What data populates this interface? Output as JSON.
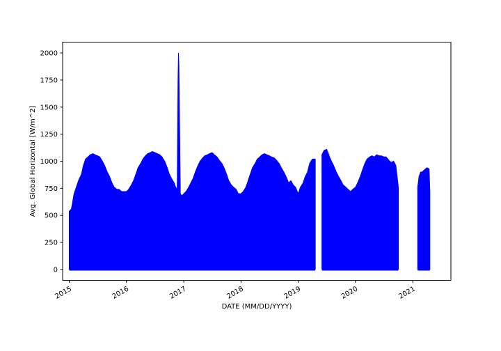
{
  "chart_data": {
    "type": "area",
    "title": "",
    "xlabel": "DATE (MM/DD/YYYY)",
    "ylabel": "Avg. Global Horizontal [W/m^2]",
    "xlim": [
      "2014-11-20",
      "2021-09-01"
    ],
    "ylim": [
      -100,
      2100
    ],
    "x_ticks": [
      "2015",
      "2016",
      "2017",
      "2018",
      "2019",
      "2020",
      "2021"
    ],
    "y_ticks": [
      0,
      250,
      500,
      750,
      1000,
      1250,
      1500,
      1750,
      2000
    ],
    "grid": false,
    "legend": "none",
    "series_color": "#0000ff",
    "series": [
      {
        "min": 0,
        "envelope_daily_max": {
          "dates": [
            "2015-01-01",
            "2015-01-03",
            "2015-01-15",
            "2015-02-01",
            "2015-02-15",
            "2015-03-01",
            "2015-03-20",
            "2015-04-01",
            "2015-04-15",
            "2015-05-01",
            "2015-05-15",
            "2015-06-01",
            "2015-06-15",
            "2015-07-01",
            "2015-07-15",
            "2015-08-01",
            "2015-08-15",
            "2015-09-01",
            "2015-09-15",
            "2015-10-01",
            "2015-10-15",
            "2015-11-01",
            "2015-11-15",
            "2015-12-01",
            "2015-12-15",
            "2016-01-01",
            "2016-01-15",
            "2016-02-01",
            "2016-02-15",
            "2016-03-01",
            "2016-03-15",
            "2016-04-01",
            "2016-04-15",
            "2016-05-01",
            "2016-05-15",
            "2016-06-01",
            "2016-06-15",
            "2016-07-01",
            "2016-07-15",
            "2016-08-01",
            "2016-08-15",
            "2016-09-01",
            "2016-09-15",
            "2016-10-01",
            "2016-10-15",
            "2016-11-01",
            "2016-11-10",
            "2016-11-20",
            "2016-11-25",
            "2016-11-28",
            "2016-12-01",
            "2016-12-10",
            "2016-12-20",
            "2017-01-01",
            "2017-01-15",
            "2017-02-01",
            "2017-02-15",
            "2017-03-01",
            "2017-03-15",
            "2017-04-01",
            "2017-04-15",
            "2017-05-01",
            "2017-05-15",
            "2017-06-01",
            "2017-06-15",
            "2017-07-01",
            "2017-07-15",
            "2017-08-01",
            "2017-08-15",
            "2017-09-01",
            "2017-09-15",
            "2017-10-01",
            "2017-10-15",
            "2017-11-01",
            "2017-11-15",
            "2017-12-01",
            "2017-12-15",
            "2018-01-01",
            "2018-01-15",
            "2018-02-01",
            "2018-02-15",
            "2018-03-01",
            "2018-03-15",
            "2018-04-01",
            "2018-04-15",
            "2018-05-01",
            "2018-05-15",
            "2018-06-01",
            "2018-06-15",
            "2018-07-01",
            "2018-07-15",
            "2018-08-01",
            "2018-08-15",
            "2018-09-01",
            "2018-09-15",
            "2018-10-01",
            "2018-10-15",
            "2018-11-01",
            "2018-11-15",
            "2018-12-01",
            "2018-12-15",
            "2019-01-01",
            "2019-01-15",
            "2019-02-01",
            "2019-02-15",
            "2019-03-01",
            "2019-03-15",
            "2019-04-01",
            "2019-04-15",
            "2019-04-20",
            "2019-06-01",
            "2019-06-15",
            "2019-07-01",
            "2019-07-10",
            "2019-07-20",
            "2019-08-01",
            "2019-08-15",
            "2019-09-01",
            "2019-09-15",
            "2019-10-01",
            "2019-10-15",
            "2019-11-01",
            "2019-11-15",
            "2019-12-01",
            "2019-12-15",
            "2020-01-01",
            "2020-01-15",
            "2020-02-01",
            "2020-02-15",
            "2020-03-01",
            "2020-03-15",
            "2020-04-01",
            "2020-04-15",
            "2020-05-01",
            "2020-05-15",
            "2020-06-01",
            "2020-06-15",
            "2020-07-01",
            "2020-07-15",
            "2020-08-01",
            "2020-08-15",
            "2020-09-01",
            "2020-09-15",
            "2020-10-01",
            "2021-02-01",
            "2021-02-10",
            "2021-02-20",
            "2021-03-01",
            "2021-03-15",
            "2021-04-01",
            "2021-04-15",
            "2021-04-20"
          ],
          "values": [
            540,
            540,
            560,
            700,
            760,
            820,
            880,
            960,
            1020,
            1040,
            1060,
            1070,
            1060,
            1050,
            1040,
            1000,
            960,
            900,
            860,
            800,
            760,
            740,
            740,
            720,
            720,
            720,
            740,
            780,
            820,
            880,
            940,
            980,
            1020,
            1050,
            1070,
            1080,
            1090,
            1080,
            1070,
            1060,
            1040,
            1000,
            950,
            880,
            840,
            800,
            760,
            740,
            1750,
            2000,
            1880,
            700,
            680,
            700,
            720,
            760,
            800,
            840,
            900,
            960,
            1000,
            1030,
            1050,
            1060,
            1070,
            1080,
            1060,
            1040,
            1010,
            980,
            940,
            880,
            820,
            780,
            760,
            740,
            700,
            700,
            720,
            760,
            820,
            880,
            940,
            980,
            1020,
            1040,
            1060,
            1070,
            1060,
            1050,
            1040,
            1030,
            1010,
            980,
            940,
            900,
            860,
            800,
            820,
            780,
            760,
            700,
            760,
            800,
            860,
            900,
            980,
            1020,
            1020,
            1020,
            1060,
            1100,
            1110,
            1080,
            1040,
            1000,
            960,
            900,
            860,
            820,
            780,
            760,
            740,
            720,
            740,
            760,
            800,
            860,
            920,
            980,
            1020,
            1040,
            1050,
            1040,
            1060,
            1050,
            1050,
            1040,
            1040,
            1010,
            990,
            1000,
            960,
            760,
            760,
            860,
            900,
            900,
            920,
            940,
            930,
            720
          ]
        }
      }
    ]
  }
}
